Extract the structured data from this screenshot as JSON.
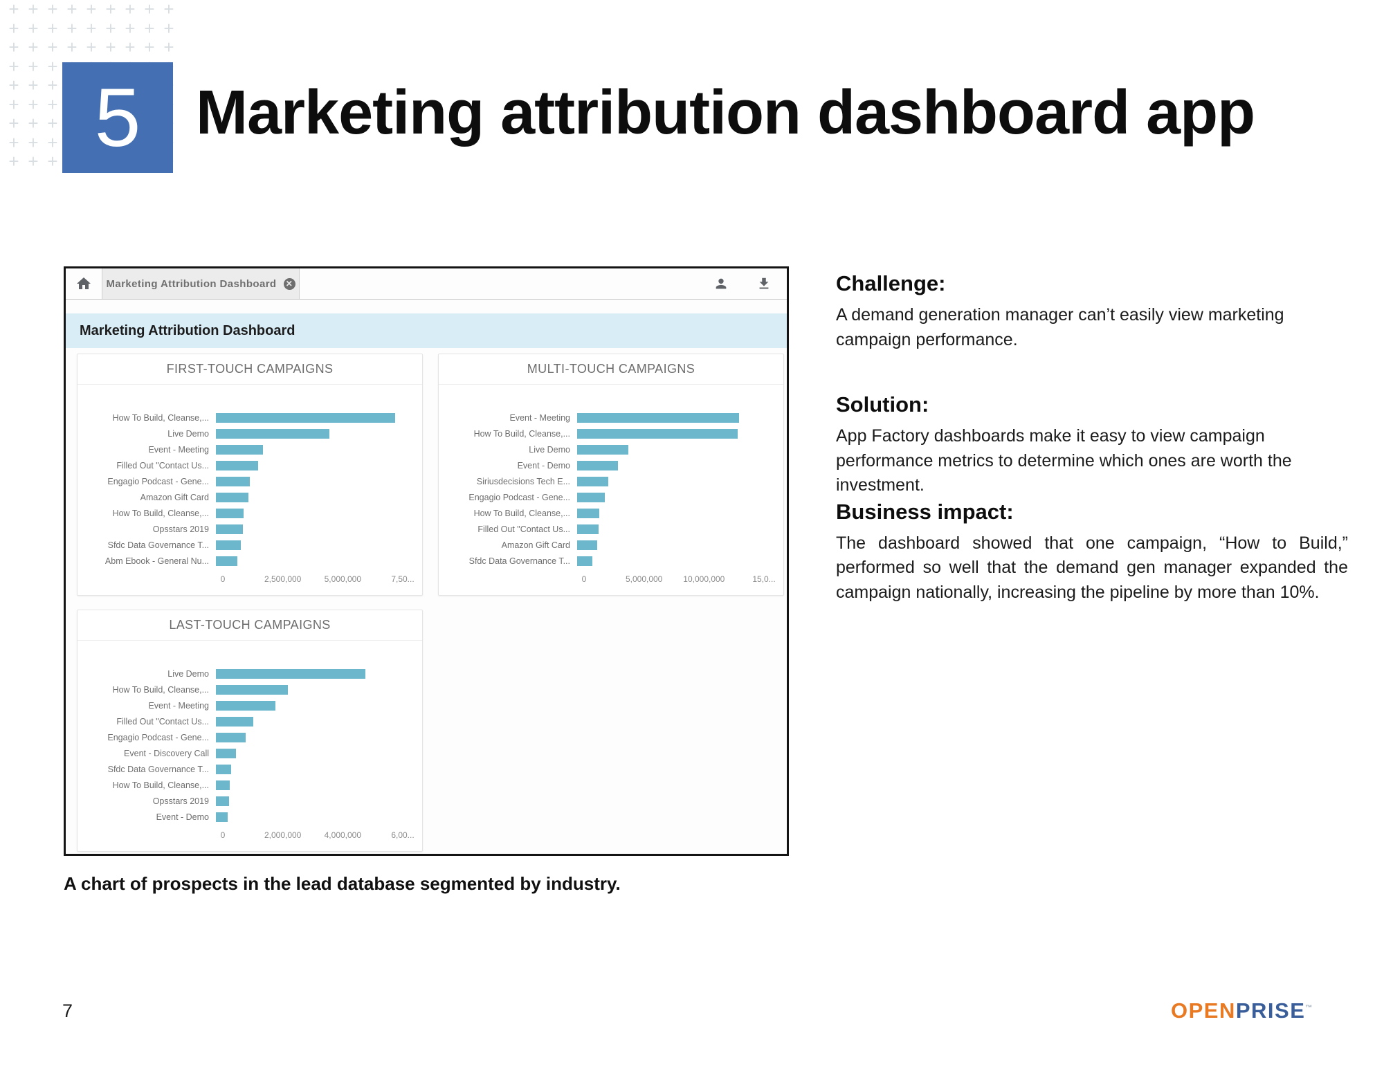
{
  "slide": {
    "number_badge": "5",
    "title": "Marketing attribution dashboard app",
    "caption": "A chart of prospects in the lead database segmented by industry.",
    "page_number": "7"
  },
  "right_column": {
    "challenge": {
      "heading": "Challenge:",
      "body": "A demand generation manager can’t easily view marketing campaign performance."
    },
    "solution": {
      "heading": "Solution:",
      "body": "App Factory dashboards make it easy to view campaign performance metrics to determine which ones are worth the investment."
    },
    "business_impact": {
      "heading": "Business impact:",
      "body": "The dashboard showed that one campaign, “How to Build,” performed so well that the demand gen manager expanded the campaign nationally, increasing the pipeline by more than 10%."
    }
  },
  "dashboard": {
    "tab_title": "Marketing Attribution Dashboard",
    "tab_close_glyph": "✕",
    "header_title": "Marketing Attribution Dashboard",
    "icons": {
      "home": "home-icon",
      "user": "user-icon",
      "download": "download-icon"
    },
    "colors": {
      "bar": "#6cb7cb",
      "header_band": "#d9edf7",
      "accent_blue": "#4470b3"
    }
  },
  "chart_data": [
    {
      "type": "bar",
      "orientation": "horizontal",
      "title": "FIRST-TOUCH CAMPAIGNS",
      "categories": [
        "How To Build, Cleanse,...",
        "Live Demo",
        "Event - Meeting",
        "Filled Out \"Contact Us...",
        "Engagio Podcast - Gene...",
        "Amazon Gift Card",
        "How To Build, Cleanse,...",
        "Opsstars 2019",
        "Sfdc Data Governance T...",
        "Abm Ebook - General Nu..."
      ],
      "values": [
        7200000,
        4550000,
        1900000,
        1700000,
        1350000,
        1300000,
        1100000,
        1080000,
        1000000,
        850000
      ],
      "x_ticks": [
        "0",
        "2,500,000",
        "5,000,000",
        "7,50..."
      ],
      "xlim": [
        0,
        7500000
      ],
      "grid": false,
      "legend": false
    },
    {
      "type": "bar",
      "orientation": "horizontal",
      "title": "MULTI-TOUCH CAMPAIGNS",
      "categories": [
        "Event - Meeting",
        "How To Build, Cleanse,...",
        "Live Demo",
        "Event - Demo",
        "Siriusdecisions Tech E...",
        "Engagio Podcast - Gene...",
        "How To Build, Cleanse,...",
        "Filled Out \"Contact Us...",
        "Amazon Gift Card",
        "Sfdc Data Governance T..."
      ],
      "values": [
        13000000,
        12900000,
        4100000,
        3300000,
        2500000,
        2200000,
        1800000,
        1700000,
        1600000,
        1200000
      ],
      "x_ticks": [
        "0",
        "5,000,000",
        "10,000,000",
        "15,0..."
      ],
      "xlim": [
        0,
        15000000
      ],
      "grid": false,
      "legend": false
    },
    {
      "type": "bar",
      "orientation": "horizontal",
      "title": "LAST-TOUCH CAMPAIGNS",
      "categories": [
        "Live Demo",
        "How To Build, Cleanse,...",
        "Event - Meeting",
        "Filled Out \"Contact Us...",
        "Engagio Podcast - Gene...",
        "Event - Discovery Call",
        "Sfdc Data Governance T...",
        "How To Build, Cleanse,...",
        "Opsstars 2019",
        "Event - Demo"
      ],
      "values": [
        4800000,
        2300000,
        1900000,
        1200000,
        950000,
        650000,
        480000,
        450000,
        430000,
        380000
      ],
      "x_ticks": [
        "0",
        "2,000,000",
        "4,000,000",
        "6,00..."
      ],
      "xlim": [
        0,
        6000000
      ],
      "grid": false,
      "legend": false
    }
  ],
  "logo": {
    "part1": "OPEN",
    "part2": "PRISE",
    "tm": "™"
  }
}
